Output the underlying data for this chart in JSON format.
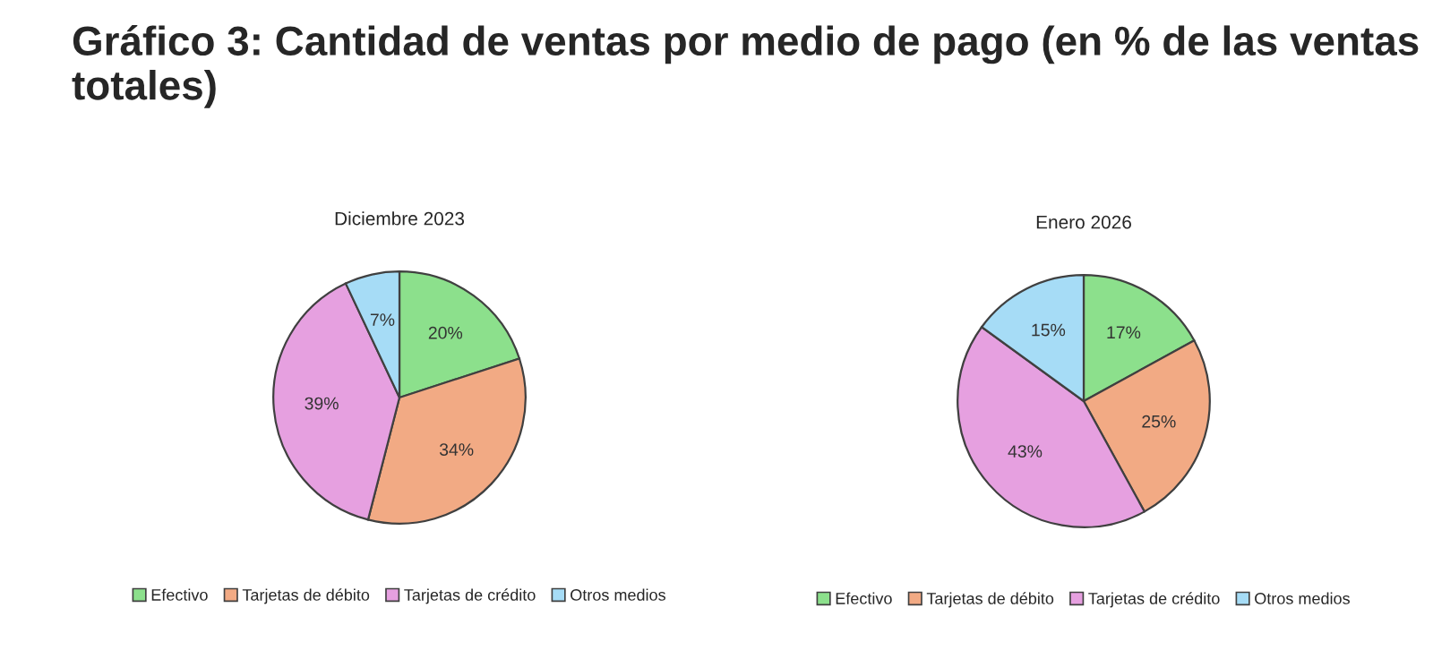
{
  "chart_data": [
    {
      "type": "pie",
      "title": "Diciembre 2023",
      "annotations": [
        "Gráfico 3: Cantidad de ventas por medio de pago (en % de las ventas totales)"
      ],
      "categories": [
        "Efectivo",
        "Tarjetas de débito",
        "Tarjetas de crédito",
        "Otros medios"
      ],
      "values": [
        20,
        34,
        39,
        7
      ],
      "value_labels": [
        "20%",
        "34%",
        "39%",
        "7%"
      ],
      "colors": [
        "#8ce08c",
        "#f2aa84",
        "#e6a0e0",
        "#a6dcf6"
      ],
      "legend": "bottom"
    },
    {
      "type": "pie",
      "title": "Enero 2026",
      "categories": [
        "Efectivo",
        "Tarjetas de débito",
        "Tarjetas de crédito",
        "Otros medios"
      ],
      "values": [
        17,
        25,
        43,
        15
      ],
      "value_labels": [
        "17%",
        "25%",
        "43%",
        "15%"
      ],
      "colors": [
        "#8ce08c",
        "#f2aa84",
        "#e6a0e0",
        "#a6dcf6"
      ],
      "legend": "bottom"
    }
  ]
}
